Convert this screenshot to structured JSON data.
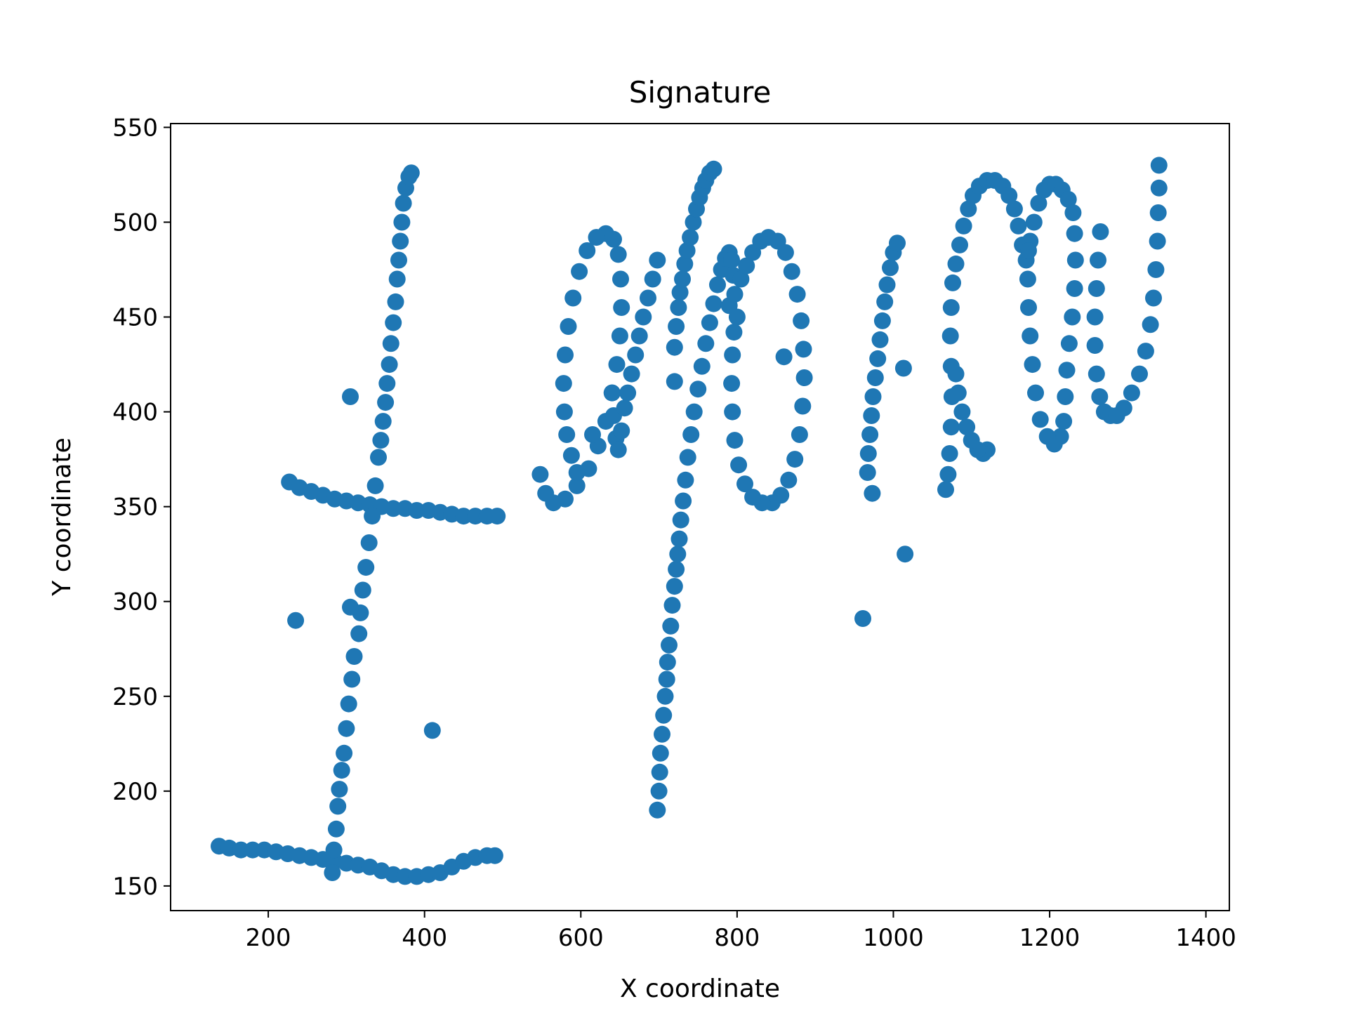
{
  "chart_data": {
    "type": "scatter",
    "title": "Signature",
    "xlabel": "X coordinate",
    "ylabel": "Y coordinate",
    "xlim": [
      75,
      1430
    ],
    "ylim": [
      137,
      552
    ],
    "xticks": [
      200,
      400,
      600,
      800,
      1000,
      1200,
      1400
    ],
    "yticks": [
      150,
      200,
      250,
      300,
      350,
      400,
      450,
      500,
      550
    ],
    "grid": false,
    "legend": "none",
    "marker_color": "#1f77b4",
    "series": [
      {
        "points": [
          [
            137,
            171
          ],
          [
            150,
            170
          ],
          [
            165,
            169
          ],
          [
            180,
            169
          ],
          [
            195,
            169
          ],
          [
            210,
            168
          ],
          [
            225,
            167
          ],
          [
            240,
            166
          ],
          [
            255,
            165
          ],
          [
            270,
            164
          ],
          [
            285,
            163
          ],
          [
            300,
            162
          ],
          [
            315,
            161
          ],
          [
            330,
            160
          ],
          [
            345,
            158
          ],
          [
            360,
            156
          ],
          [
            375,
            155
          ],
          [
            390,
            155
          ],
          [
            405,
            156
          ],
          [
            420,
            157
          ],
          [
            435,
            160
          ],
          [
            450,
            163
          ],
          [
            465,
            165
          ],
          [
            480,
            166
          ],
          [
            490,
            166
          ],
          [
            227,
            363
          ],
          [
            240,
            360
          ],
          [
            255,
            358
          ],
          [
            270,
            356
          ],
          [
            285,
            354
          ],
          [
            300,
            353
          ],
          [
            315,
            352
          ],
          [
            330,
            351
          ],
          [
            345,
            350
          ],
          [
            360,
            349
          ],
          [
            375,
            349
          ],
          [
            390,
            348
          ],
          [
            405,
            348
          ],
          [
            420,
            347
          ],
          [
            435,
            346
          ],
          [
            450,
            345
          ],
          [
            465,
            345
          ],
          [
            480,
            345
          ],
          [
            493,
            345
          ],
          [
            282,
            157
          ],
          [
            284,
            169
          ],
          [
            287,
            180
          ],
          [
            289,
            192
          ],
          [
            291,
            201
          ],
          [
            294,
            211
          ],
          [
            297,
            220
          ],
          [
            300,
            233
          ],
          [
            303,
            246
          ],
          [
            307,
            259
          ],
          [
            310,
            271
          ],
          [
            316,
            283
          ],
          [
            318,
            294
          ],
          [
            321,
            306
          ],
          [
            325,
            318
          ],
          [
            329,
            331
          ],
          [
            333,
            345
          ],
          [
            337,
            361
          ],
          [
            341,
            376
          ],
          [
            344,
            385
          ],
          [
            347,
            395
          ],
          [
            350,
            405
          ],
          [
            352,
            415
          ],
          [
            355,
            425
          ],
          [
            357,
            436
          ],
          [
            360,
            447
          ],
          [
            363,
            458
          ],
          [
            365,
            470
          ],
          [
            367,
            480
          ],
          [
            369,
            490
          ],
          [
            371,
            500
          ],
          [
            373,
            510
          ],
          [
            376,
            518
          ],
          [
            380,
            524
          ],
          [
            383,
            526
          ],
          [
            698,
            190
          ],
          [
            700,
            200
          ],
          [
            701,
            210
          ],
          [
            702,
            220
          ],
          [
            704,
            230
          ],
          [
            706,
            240
          ],
          [
            708,
            250
          ],
          [
            710,
            259
          ],
          [
            711,
            268
          ],
          [
            713,
            277
          ],
          [
            715,
            287
          ],
          [
            717,
            298
          ],
          [
            720,
            308
          ],
          [
            722,
            317
          ],
          [
            724,
            325
          ],
          [
            726,
            333
          ],
          [
            728,
            343
          ],
          [
            731,
            353
          ],
          [
            734,
            364
          ],
          [
            737,
            376
          ],
          [
            741,
            388
          ],
          [
            745,
            400
          ],
          [
            750,
            412
          ],
          [
            755,
            424
          ],
          [
            760,
            436
          ],
          [
            765,
            447
          ],
          [
            770,
            457
          ],
          [
            775,
            467
          ],
          [
            780,
            475
          ],
          [
            785,
            481
          ],
          [
            790,
            484
          ],
          [
            793,
            480
          ],
          [
            795,
            472
          ],
          [
            720,
            434
          ],
          [
            722,
            445
          ],
          [
            725,
            455
          ],
          [
            727,
            463
          ],
          [
            730,
            470
          ],
          [
            733,
            478
          ],
          [
            736,
            485
          ],
          [
            740,
            492
          ],
          [
            744,
            500
          ],
          [
            748,
            507
          ],
          [
            752,
            513
          ],
          [
            756,
            518
          ],
          [
            760,
            522
          ],
          [
            765,
            526
          ],
          [
            770,
            528
          ],
          [
            548,
            367
          ],
          [
            555,
            357
          ],
          [
            565,
            352
          ],
          [
            580,
            354
          ],
          [
            595,
            361
          ],
          [
            610,
            370
          ],
          [
            622,
            382
          ],
          [
            632,
            395
          ],
          [
            640,
            410
          ],
          [
            646,
            425
          ],
          [
            650,
            440
          ],
          [
            652,
            455
          ],
          [
            651,
            470
          ],
          [
            648,
            483
          ],
          [
            642,
            491
          ],
          [
            632,
            494
          ],
          [
            620,
            492
          ],
          [
            608,
            485
          ],
          [
            598,
            474
          ],
          [
            590,
            460
          ],
          [
            584,
            445
          ],
          [
            580,
            430
          ],
          [
            578,
            415
          ],
          [
            579,
            400
          ],
          [
            582,
            388
          ],
          [
            588,
            377
          ],
          [
            595,
            368
          ],
          [
            640,
            410
          ],
          [
            642,
            398
          ],
          [
            645,
            386
          ],
          [
            648,
            380
          ],
          [
            652,
            390
          ],
          [
            656,
            402
          ],
          [
            660,
            410
          ],
          [
            665,
            420
          ],
          [
            670,
            430
          ],
          [
            675,
            440
          ],
          [
            680,
            450
          ],
          [
            686,
            460
          ],
          [
            692,
            470
          ],
          [
            698,
            480
          ],
          [
            790,
            456
          ],
          [
            797,
            462
          ],
          [
            805,
            470
          ],
          [
            812,
            477
          ],
          [
            820,
            484
          ],
          [
            830,
            490
          ],
          [
            840,
            492
          ],
          [
            852,
            490
          ],
          [
            862,
            484
          ],
          [
            870,
            474
          ],
          [
            877,
            462
          ],
          [
            882,
            448
          ],
          [
            885,
            433
          ],
          [
            886,
            418
          ],
          [
            884,
            403
          ],
          [
            880,
            388
          ],
          [
            874,
            375
          ],
          [
            866,
            364
          ],
          [
            856,
            356
          ],
          [
            845,
            352
          ],
          [
            832,
            352
          ],
          [
            820,
            355
          ],
          [
            810,
            362
          ],
          [
            802,
            372
          ],
          [
            797,
            385
          ],
          [
            794,
            400
          ],
          [
            793,
            415
          ],
          [
            794,
            430
          ],
          [
            796,
            442
          ],
          [
            800,
            450
          ],
          [
            967,
            368
          ],
          [
            968,
            378
          ],
          [
            970,
            388
          ],
          [
            972,
            398
          ],
          [
            974,
            408
          ],
          [
            977,
            418
          ],
          [
            980,
            428
          ],
          [
            983,
            438
          ],
          [
            986,
            448
          ],
          [
            989,
            458
          ],
          [
            992,
            467
          ],
          [
            996,
            476
          ],
          [
            1000,
            484
          ],
          [
            1005,
            489
          ],
          [
            1070,
            367
          ],
          [
            1072,
            378
          ],
          [
            1074,
            392
          ],
          [
            1075,
            408
          ],
          [
            1074,
            424
          ],
          [
            1073,
            440
          ],
          [
            1074,
            455
          ],
          [
            1076,
            468
          ],
          [
            1080,
            478
          ],
          [
            1085,
            488
          ],
          [
            1090,
            498
          ],
          [
            1096,
            507
          ],
          [
            1102,
            514
          ],
          [
            1110,
            519
          ],
          [
            1120,
            522
          ],
          [
            1130,
            522
          ],
          [
            1140,
            519
          ],
          [
            1148,
            514
          ],
          [
            1155,
            507
          ],
          [
            1160,
            498
          ],
          [
            1165,
            488
          ],
          [
            1170,
            480
          ],
          [
            1175,
            490
          ],
          [
            1180,
            500
          ],
          [
            1186,
            510
          ],
          [
            1193,
            517
          ],
          [
            1200,
            520
          ],
          [
            1208,
            520
          ],
          [
            1216,
            517
          ],
          [
            1224,
            512
          ],
          [
            1230,
            505
          ],
          [
            1232,
            494
          ],
          [
            1233,
            480
          ],
          [
            1232,
            465
          ],
          [
            1229,
            450
          ],
          [
            1225,
            436
          ],
          [
            1222,
            422
          ],
          [
            1220,
            408
          ],
          [
            1218,
            395
          ],
          [
            1214,
            387
          ],
          [
            1206,
            383
          ],
          [
            1197,
            387
          ],
          [
            1188,
            396
          ],
          [
            1182,
            410
          ],
          [
            1178,
            425
          ],
          [
            1175,
            440
          ],
          [
            1173,
            455
          ],
          [
            1172,
            470
          ],
          [
            1173,
            485
          ],
          [
            1265,
            495
          ],
          [
            1262,
            480
          ],
          [
            1260,
            465
          ],
          [
            1258,
            450
          ],
          [
            1258,
            435
          ],
          [
            1260,
            420
          ],
          [
            1264,
            408
          ],
          [
            1270,
            400
          ],
          [
            1278,
            398
          ],
          [
            1286,
            398
          ],
          [
            1295,
            402
          ],
          [
            1305,
            410
          ],
          [
            1315,
            420
          ],
          [
            1323,
            432
          ],
          [
            1329,
            446
          ],
          [
            1333,
            460
          ],
          [
            1336,
            475
          ],
          [
            1338,
            490
          ],
          [
            1339,
            505
          ],
          [
            1340,
            518
          ],
          [
            1340,
            530
          ],
          [
            1120,
            380
          ],
          [
            1115,
            378
          ],
          [
            1108,
            380
          ],
          [
            1100,
            385
          ],
          [
            1094,
            392
          ],
          [
            1088,
            400
          ],
          [
            1083,
            410
          ],
          [
            1080,
            420
          ],
          [
            615,
            388
          ],
          [
            720,
            416
          ],
          [
            860,
            429
          ],
          [
            1013,
            423
          ],
          [
            961,
            291
          ],
          [
            1015,
            325
          ],
          [
            973,
            357
          ],
          [
            1067,
            359
          ],
          [
            305,
            408
          ],
          [
            235,
            290
          ],
          [
            410,
            232
          ],
          [
            305,
            297
          ]
        ]
      }
    ]
  }
}
